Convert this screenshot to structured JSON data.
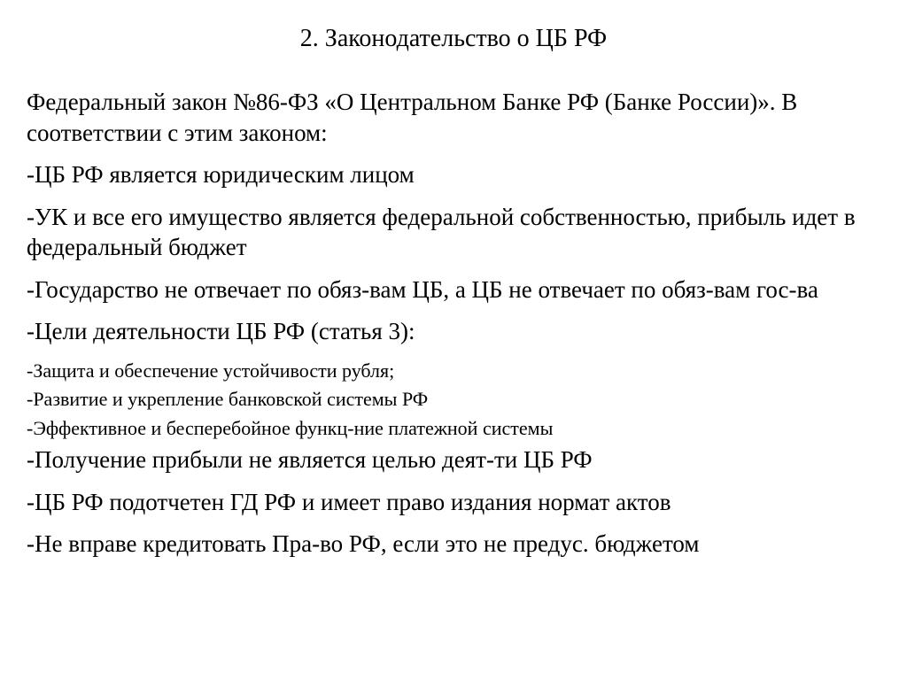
{
  "title": "2. Законодательство о ЦБ РФ",
  "paragraphs": [
    {
      "text": "Федеральный закон №86-ФЗ «О Центральном Банке РФ (Банке России)». В соответствии с этим законом:",
      "size": "large"
    },
    {
      "text": "-ЦБ РФ является юридическим лицом",
      "size": "large"
    },
    {
      "text": "-УК и все его имущество является федеральной собственностью, прибыль идет в федеральный бюджет",
      "size": "large"
    },
    {
      "text": "-Государство не отвечает по обяз-вам ЦБ, а ЦБ не отвечает по обяз-вам гос-ва",
      "size": "large"
    },
    {
      "text": "-Цели деятельности ЦБ РФ (статья 3):",
      "size": "large"
    },
    {
      "text": "-Защита и обеспечение устойчивости рубля;",
      "size": "small"
    },
    {
      "text": "-Развитие и укрепление банковской системы РФ",
      "size": "small"
    },
    {
      "text": "-Эффективное и бесперебойное функц-ние платежной системы",
      "size": "small"
    },
    {
      "text": "-Получение прибыли не является целью деят-ти ЦБ РФ",
      "size": "large"
    },
    {
      "text": "-ЦБ РФ подотчетен ГД РФ и имеет право издания нормат актов",
      "size": "large"
    },
    {
      "text": "-Не вправе кредитовать Пра-во РФ, если это не предус. бюджетом",
      "size": "large"
    }
  ],
  "styles": {
    "background_color": "#ffffff",
    "text_color": "#000000",
    "font_family": "Times New Roman",
    "title_fontsize": 28,
    "large_fontsize": 27,
    "small_fontsize": 22
  }
}
